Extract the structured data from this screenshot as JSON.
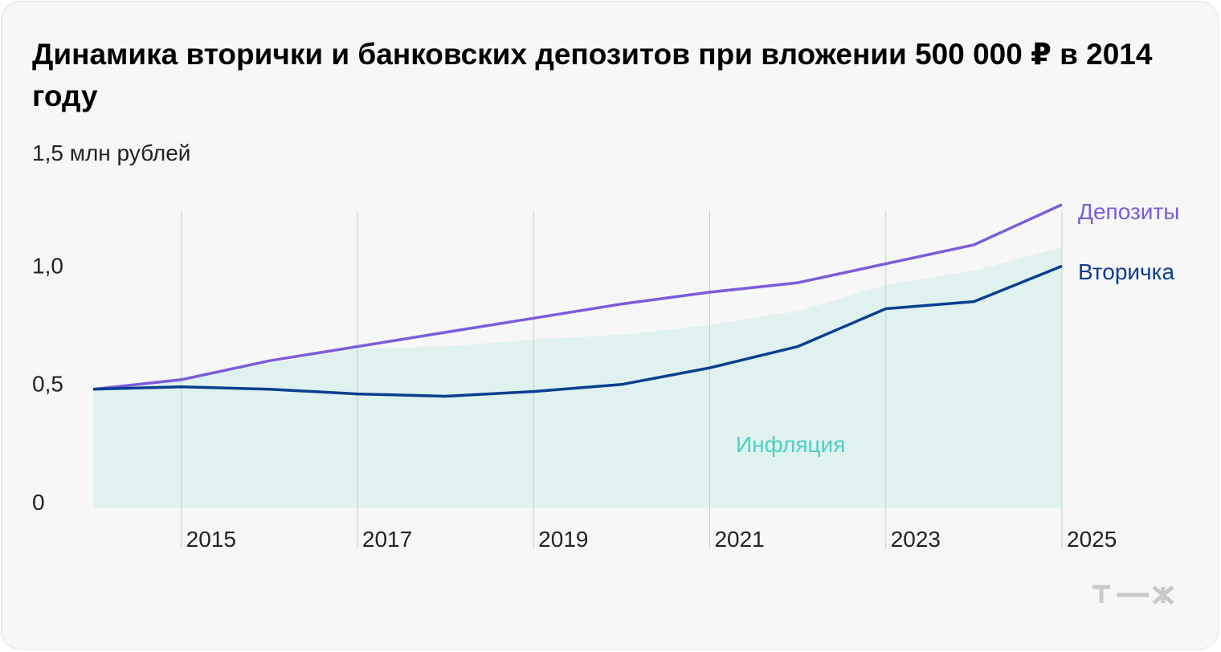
{
  "title": "Динамика вторички и банковских депозитов при вложении 500 000 ₽ в 2014 году",
  "colors": {
    "deposits": "#7b5cdc",
    "secondary": "#0a3e8f",
    "inflation_fill": "#dff2ef",
    "inflation_label": "#4fcfc1",
    "grid": "#cccccc"
  },
  "brand": "т—ж",
  "chart_data": {
    "type": "line",
    "title": "Динамика вторички и банковских депозитов при вложении 500 000 ₽ в 2014 году",
    "unit_label": "1,5 млн рублей",
    "ylim": [
      0,
      1.5
    ],
    "xlim": [
      2014,
      2025
    ],
    "y_ticks": [
      {
        "value": 0,
        "label": "0"
      },
      {
        "value": 0.5,
        "label": "0,5"
      },
      {
        "value": 1.0,
        "label": "1,0"
      }
    ],
    "x_ticks": [
      {
        "value": 2015,
        "label": "2015"
      },
      {
        "value": 2017,
        "label": "2017"
      },
      {
        "value": 2019,
        "label": "2019"
      },
      {
        "value": 2021,
        "label": "2021"
      },
      {
        "value": 2023,
        "label": "2023"
      },
      {
        "value": 2025,
        "label": "2025"
      }
    ],
    "x": [
      2014,
      2015,
      2016,
      2017,
      2018,
      2019,
      2020,
      2021,
      2022,
      2023,
      2024,
      2025
    ],
    "series": [
      {
        "name": "Депозиты",
        "key": "deposits",
        "kind": "line",
        "values": [
          0.5,
          0.54,
          0.62,
          0.68,
          0.74,
          0.8,
          0.86,
          0.91,
          0.95,
          1.03,
          1.11,
          1.28
        ]
      },
      {
        "name": "Вторичка",
        "key": "secondary",
        "kind": "line",
        "values": [
          0.5,
          0.51,
          0.5,
          0.48,
          0.47,
          0.49,
          0.52,
          0.59,
          0.68,
          0.84,
          0.87,
          1.02
        ]
      },
      {
        "name": "Инфляция",
        "key": "inflation",
        "kind": "area",
        "values": [
          0.5,
          0.55,
          0.61,
          0.67,
          0.68,
          0.71,
          0.73,
          0.77,
          0.83,
          0.94,
          1.0,
          1.1
        ]
      }
    ]
  }
}
